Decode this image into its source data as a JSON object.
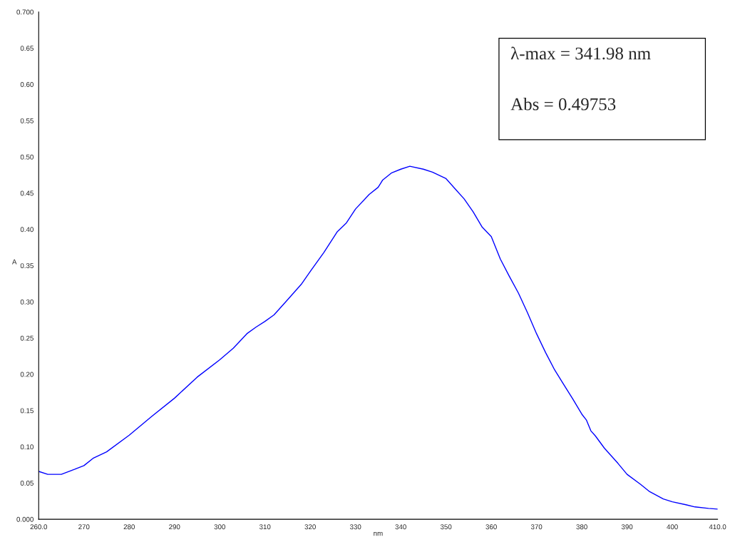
{
  "chart_data": {
    "type": "line",
    "xlabel": "nm",
    "ylabel": "A",
    "x": [
      260,
      262,
      265,
      268,
      270,
      272,
      275,
      280,
      285,
      290,
      295,
      300,
      303,
      306,
      308,
      310,
      312,
      315,
      318,
      320,
      323,
      326,
      328,
      330,
      333,
      335,
      336,
      338,
      340,
      342,
      345,
      347,
      349,
      350,
      352,
      354,
      356,
      358,
      360,
      362,
      364,
      366,
      368,
      370,
      372,
      374,
      376,
      378,
      380,
      381,
      382,
      383,
      385,
      388,
      390,
      393,
      395,
      398,
      400,
      403,
      405,
      408,
      410
    ],
    "series": [
      {
        "color": "#0000ff",
        "values": [
          0.066,
          0.062,
          0.062,
          0.069,
          0.074,
          0.084,
          0.093,
          0.116,
          0.142,
          0.167,
          0.196,
          0.22,
          0.236,
          0.256,
          0.265,
          0.273,
          0.282,
          0.303,
          0.324,
          0.342,
          0.368,
          0.397,
          0.409,
          0.428,
          0.448,
          0.458,
          0.468,
          0.478,
          0.483,
          0.487,
          0.483,
          0.479,
          0.473,
          0.47,
          0.456,
          0.442,
          0.424,
          0.403,
          0.39,
          0.359,
          0.335,
          0.312,
          0.285,
          0.256,
          0.23,
          0.206,
          0.186,
          0.166,
          0.145,
          0.137,
          0.122,
          0.115,
          0.098,
          0.077,
          0.062,
          0.048,
          0.038,
          0.028,
          0.024,
          0.02,
          0.017,
          0.015,
          0.014
        ]
      }
    ],
    "xlim": [
      260,
      410
    ],
    "xticks": [
      {
        "value": 260,
        "label": "260.0"
      },
      270,
      280,
      290,
      300,
      310,
      320,
      330,
      340,
      350,
      360,
      370,
      380,
      390,
      400,
      {
        "value": 410,
        "label": "410.0"
      }
    ],
    "ylim": [
      0,
      0.7
    ],
    "yticks": [
      {
        "value": 0,
        "label": "0.000"
      },
      {
        "value": 0.05,
        "label": "0.05"
      },
      {
        "value": 0.1,
        "label": "0.10"
      },
      {
        "value": 0.15,
        "label": "0.15"
      },
      {
        "value": 0.2,
        "label": "0.20"
      },
      {
        "value": 0.25,
        "label": "0.25"
      },
      {
        "value": 0.3,
        "label": "0.30"
      },
      {
        "value": 0.35,
        "label": "0.35"
      },
      {
        "value": 0.4,
        "label": "0.40"
      },
      {
        "value": 0.45,
        "label": "0.45"
      },
      {
        "value": 0.5,
        "label": "0.50"
      },
      {
        "value": 0.55,
        "label": "0.55"
      },
      {
        "value": 0.6,
        "label": "0.60"
      },
      {
        "value": 0.65,
        "label": "0.65"
      },
      {
        "value": 0.7,
        "label": "0.700"
      }
    ],
    "annotations": [
      "λ-max = 341.98 nm",
      "Abs = 0.49753"
    ],
    "grid": false,
    "legend": false,
    "marker": "none",
    "line_style": "solid"
  }
}
